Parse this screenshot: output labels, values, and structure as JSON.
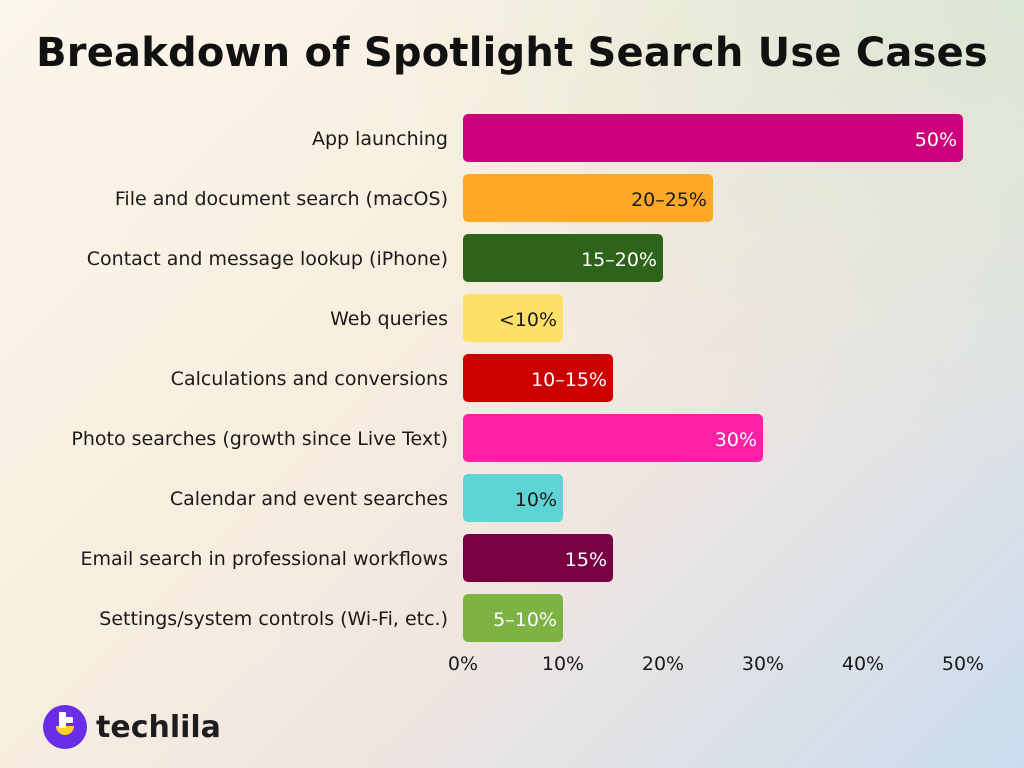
{
  "chart_data": {
    "type": "bar",
    "orientation": "horizontal",
    "title": "Breakdown of Spotlight Search Use Cases",
    "xlabel": "",
    "ylabel": "",
    "xlim": [
      0,
      50
    ],
    "x_ticks": [
      "0%",
      "10%",
      "20%",
      "30%",
      "40%",
      "50%"
    ],
    "grid": false,
    "categories": [
      "App launching",
      "File and document search (macOS)",
      "Contact and message lookup (iPhone)",
      "Web queries",
      "Calculations and conversions",
      "Photo searches (growth since Live Text)",
      "Calendar and event searches",
      "Email search in professional workflows",
      "Settings/system controls (Wi-Fi, etc.)"
    ],
    "values": [
      50,
      25,
      20,
      10,
      15,
      30,
      10,
      15,
      10
    ],
    "data_labels": [
      "50%",
      "20–25%",
      "15–20%",
      "<10%",
      "10–15%",
      "30%",
      "10%",
      "15%",
      "5–10%"
    ],
    "colors": [
      "#cc007a",
      "#ffa726",
      "#2e6419",
      "#ffe066",
      "#cc0000",
      "#ff1fa5",
      "#5fd4d4",
      "#7a0044",
      "#7cb342"
    ],
    "label_colors": [
      "#ffffff",
      "#1a1a1a",
      "#ffffff",
      "#1a1a1a",
      "#ffffff",
      "#ffffff",
      "#1a1a1a",
      "#ffffff",
      "#ffffff"
    ]
  },
  "brand": {
    "name": "techlila",
    "accent": "#6a2ee8",
    "accent2": "#ffd21f"
  }
}
